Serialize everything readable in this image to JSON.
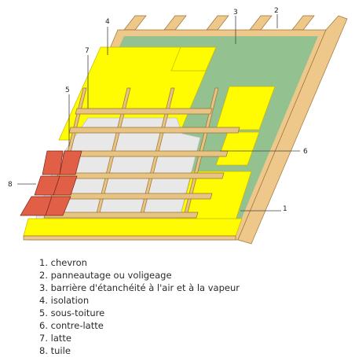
{
  "diagram": {
    "callouts": [
      {
        "number": "1"
      },
      {
        "number": "2"
      },
      {
        "number": "3"
      },
      {
        "number": "4"
      },
      {
        "number": "5"
      },
      {
        "number": "6"
      },
      {
        "number": "7"
      },
      {
        "number": "8"
      }
    ],
    "colors": {
      "rafter": "#eec78a",
      "rafter_edge": "#9a7336",
      "membrane": "#93c290",
      "insulation": "#fffb00",
      "insulation_edge": "#c9b700",
      "underlay": "#e8e8e8",
      "batten": "#e7c483",
      "tile": "#e25f47",
      "tile_edge": "#7a2418"
    }
  },
  "legend": {
    "items": [
      "1. chevron",
      "2. panneautage ou voligeage",
      "3. barrière d'étanchéité à l'air et à la vapeur",
      "4. isolation",
      "5. sous-toiture",
      "6. contre-latte",
      "7. latte",
      "8. tuile"
    ]
  }
}
